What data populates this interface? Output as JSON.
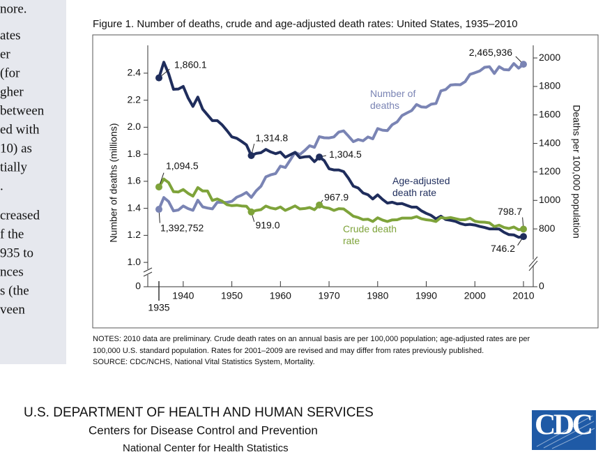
{
  "sidebar": {
    "paragraphs": [
      [
        "nore."
      ],
      [
        "ates",
        "er",
        "(for",
        "gher",
        "between",
        "ed with",
        "10) as",
        "tially",
        "."
      ],
      [
        "creased",
        "f the",
        "935 to",
        "nces",
        "s (the",
        "veen"
      ]
    ]
  },
  "chart_data": {
    "type": "line",
    "title": "Figure 1. Number of deaths, crude and age-adjusted death rates: United States, 1935–2010",
    "y_label": "Number of deaths (millions)",
    "y2_label": "Deaths per 100,000 population",
    "x": [
      1935,
      1936,
      1937,
      1938,
      1939,
      1940,
      1941,
      1942,
      1943,
      1944,
      1945,
      1946,
      1947,
      1948,
      1949,
      1950,
      1951,
      1952,
      1953,
      1954,
      1955,
      1956,
      1957,
      1958,
      1959,
      1960,
      1961,
      1962,
      1963,
      1964,
      1965,
      1966,
      1967,
      1968,
      1969,
      1970,
      1971,
      1972,
      1973,
      1974,
      1975,
      1976,
      1977,
      1978,
      1979,
      1980,
      1981,
      1982,
      1983,
      1984,
      1985,
      1986,
      1987,
      1988,
      1989,
      1990,
      1991,
      1992,
      1993,
      1994,
      1995,
      1996,
      1997,
      1998,
      1999,
      2000,
      2001,
      2002,
      2003,
      2004,
      2005,
      2006,
      2007,
      2008,
      2009,
      2010
    ],
    "xlim": [
      1935,
      2010
    ],
    "xticks": [
      1935,
      1940,
      1950,
      1960,
      1970,
      1980,
      1990,
      2000,
      2010
    ],
    "ylim": [
      0.82,
      2.58
    ],
    "yticks": [
      0,
      {
        "value": 1,
        "label": "1.0"
      },
      1.2,
      1.4,
      1.6,
      1.8,
      {
        "value": 2,
        "label": "2.0"
      },
      2.2,
      2.4
    ],
    "y2lim": [
      394,
      2064
    ],
    "y2ticks": [
      0,
      800,
      1000,
      1200,
      1400,
      1600,
      1800,
      2000
    ],
    "axis_break": true,
    "grid": false,
    "series": [
      {
        "name": "Number of deaths",
        "color": "#7a84b4",
        "axis": "y",
        "values": [
          1.392752,
          1.48,
          1.45,
          1.381,
          1.388,
          1.417,
          1.398,
          1.385,
          1.46,
          1.411,
          1.402,
          1.396,
          1.445,
          1.444,
          1.444,
          1.452,
          1.482,
          1.497,
          1.518,
          1.481,
          1.529,
          1.564,
          1.633,
          1.648,
          1.657,
          1.712,
          1.702,
          1.757,
          1.814,
          1.798,
          1.828,
          1.863,
          1.851,
          1.93,
          1.922,
          1.921,
          1.928,
          1.964,
          1.973,
          1.934,
          1.893,
          1.909,
          1.9,
          1.928,
          1.914,
          1.99,
          1.978,
          1.975,
          2.019,
          2.039,
          2.086,
          2.105,
          2.123,
          2.168,
          2.15,
          2.148,
          2.17,
          2.176,
          2.269,
          2.279,
          2.312,
          2.315,
          2.314,
          2.337,
          2.391,
          2.403,
          2.416,
          2.443,
          2.448,
          2.398,
          2.448,
          2.426,
          2.424,
          2.471,
          2.437,
          2.465936
        ],
        "value_labels": [
          "1,392,752",
          null,
          null,
          null,
          null,
          null,
          null,
          null,
          null,
          null,
          null,
          null,
          null,
          null,
          null,
          null,
          null,
          null,
          null,
          null,
          null,
          null,
          null,
          null,
          null,
          null,
          null,
          null,
          null,
          null,
          null,
          null,
          null,
          null,
          null,
          null,
          null,
          null,
          null,
          null,
          null,
          null,
          null,
          null,
          null,
          null,
          null,
          null,
          null,
          null,
          null,
          null,
          null,
          null,
          null,
          null,
          null,
          null,
          null,
          null,
          null,
          null,
          null,
          null,
          null,
          null,
          null,
          null,
          null,
          null,
          null,
          null,
          null,
          null,
          null,
          "2,465,936"
        ]
      },
      {
        "name": "Age-adjusted death rate",
        "color": "#1f2d5c",
        "axis": "y2",
        "values": [
          1860.1,
          1970,
          1890,
          1780,
          1782,
          1800,
          1720,
          1660,
          1725,
          1640,
          1600,
          1560,
          1560,
          1530,
          1490,
          1446,
          1436,
          1414,
          1390,
          1314.8,
          1330,
          1335,
          1358,
          1340,
          1328,
          1339,
          1303,
          1320,
          1337,
          1300,
          1306,
          1308,
          1272,
          1304.5,
          1280,
          1222,
          1214,
          1214,
          1202,
          1155,
          1100,
          1087,
          1052,
          1040,
          1010,
          1039,
          1007,
          981,
          987,
          976,
          978,
          965,
          953,
          953,
          927,
          909,
          895,
          870,
          889,
          866,
          860,
          853,
          838,
          829,
          832,
          827,
          817,
          810,
          800,
          800,
          799,
          776,
          760,
          758,
          741,
          746.2
        ],
        "value_labels": [
          "1,860.1",
          null,
          null,
          null,
          null,
          null,
          null,
          null,
          null,
          null,
          null,
          null,
          null,
          null,
          null,
          null,
          null,
          null,
          null,
          "1,314.8",
          null,
          null,
          null,
          null,
          null,
          null,
          null,
          null,
          null,
          null,
          null,
          null,
          null,
          "1,304.5",
          null,
          null,
          null,
          null,
          null,
          null,
          null,
          null,
          null,
          null,
          null,
          null,
          null,
          null,
          null,
          null,
          null,
          null,
          null,
          null,
          null,
          null,
          null,
          null,
          null,
          null,
          null,
          null,
          null,
          null,
          null,
          null,
          null,
          null,
          null,
          null,
          null,
          null,
          null,
          null,
          null,
          "746.2"
        ]
      },
      {
        "name": "Crude death rate",
        "color": "#7ea33a",
        "axis": "y2",
        "values": [
          1094.5,
          1150,
          1125,
          1061,
          1059,
          1076,
          1050,
          1030,
          1090,
          1066,
          1066,
          1000,
          1010,
          995,
          970,
          963,
          966,
          961,
          959,
          919,
          930,
          935,
          960,
          947,
          940,
          954,
          930,
          945,
          961,
          940,
          943,
          950,
          935,
          967.9,
          951,
          945,
          930,
          942,
          940,
          915,
          889,
          880,
          865,
          868,
          852,
          878,
          862,
          852,
          863,
          864,
          876,
          876,
          876,
          886,
          871,
          864,
          860,
          852,
          880,
          875,
          880,
          872,
          864,
          864,
          875,
          854,
          848,
          847,
          842,
          816,
          826,
          810,
          803,
          813,
          794,
          798.7
        ],
        "value_labels": [
          "1,094.5",
          null,
          null,
          null,
          null,
          null,
          null,
          null,
          null,
          null,
          null,
          null,
          null,
          null,
          null,
          null,
          null,
          null,
          null,
          "919.0",
          null,
          null,
          null,
          null,
          null,
          null,
          null,
          null,
          null,
          null,
          null,
          null,
          null,
          "967.9",
          null,
          null,
          null,
          null,
          null,
          null,
          null,
          null,
          null,
          null,
          null,
          null,
          null,
          null,
          null,
          null,
          null,
          null,
          null,
          null,
          null,
          null,
          null,
          null,
          null,
          null,
          null,
          null,
          null,
          null,
          null,
          null,
          null,
          null,
          null,
          null,
          null,
          null,
          null,
          null,
          null,
          "798.7"
        ]
      }
    ]
  },
  "notes": [
    "NOTES: 2010 data are preliminary. Crude death rates on an annual basis are per 100,000 population; age-adjusted rates are per",
    "100,000 U.S. standard population.  Rates for 2001–2009 are revised and may differ from rates previously published."
  ],
  "source": "SOURCE: CDC/NCHS, National Vital Statistics System, Mortality.",
  "footer": {
    "department": "U.S. DEPARTMENT OF HEALTH AND HUMAN SERVICES",
    "center": "Centers for Disease Control and Prevention",
    "division": "National Center for Health Statistics",
    "logo": "CDC"
  }
}
